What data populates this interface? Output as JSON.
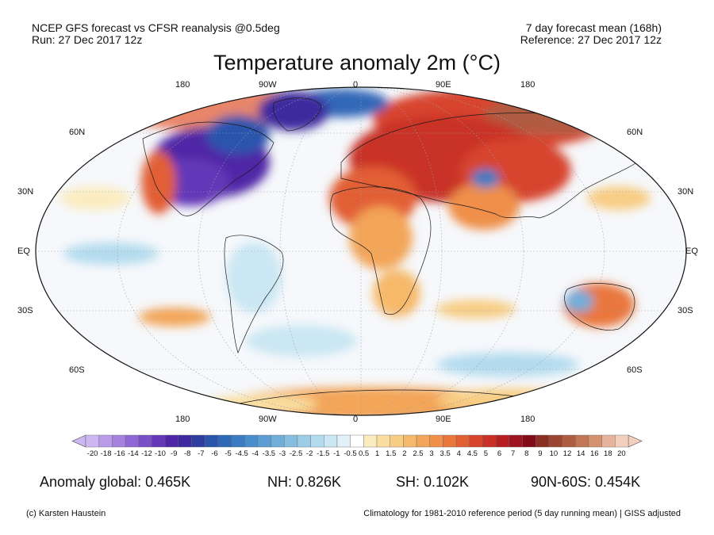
{
  "header": {
    "left_line1": "NCEP GFS forecast vs CFSR reanalysis @0.5deg",
    "left_line2": "Run: 27 Dec 2017 12z",
    "right_line1": "7 day forecast mean (168h)",
    "right_line2": "Reference: 27 Dec 2017 12z"
  },
  "title": "Temperature anomaly 2m (°C)",
  "map": {
    "lon_labels_top": [
      "180",
      "90W",
      "0",
      "90E",
      "180"
    ],
    "lon_labels_bottom": [
      "180",
      "90W",
      "0",
      "90E",
      "180"
    ],
    "lat_labels_left": [
      "60N",
      "30N",
      "EQ",
      "30S",
      "60S"
    ],
    "lat_labels_right": [
      "60N",
      "30N",
      "EQ",
      "30S",
      "60S"
    ]
  },
  "colorbar": {
    "labels": [
      "-20",
      "-18",
      "-16",
      "-14",
      "-12",
      "-10",
      "-9",
      "-8",
      "-7",
      "-6",
      "-5",
      "-4.5",
      "-4",
      "-3.5",
      "-3",
      "-2.5",
      "-2",
      "-1.5",
      "-1",
      "-0.5",
      "0.5",
      "1",
      "1.5",
      "2",
      "2.5",
      "3",
      "3.5",
      "4",
      "4.5",
      "5",
      "6",
      "7",
      "8",
      "9",
      "10",
      "12",
      "14",
      "16",
      "18",
      "20"
    ],
    "colors": [
      "#cdb7f0",
      "#b89ce8",
      "#a582e0",
      "#9068d6",
      "#7a50c8",
      "#6438b8",
      "#4f27a6",
      "#3e2a9e",
      "#2f3e9e",
      "#2b55ad",
      "#3068b8",
      "#3a7bc2",
      "#4a8dcc",
      "#5c9dd3",
      "#70aed9",
      "#86bee0",
      "#9ccde7",
      "#b3dbee",
      "#cae7f3",
      "#e1f1f8",
      "#ffffff",
      "#fbecc0",
      "#f9dea0",
      "#f8cd84",
      "#f6b96b",
      "#f3a559",
      "#ef8f4a",
      "#e9773d",
      "#e25e34",
      "#d8452d",
      "#c93027",
      "#b51f22",
      "#9e1420",
      "#840c1a",
      "#8a2f22",
      "#9c4530",
      "#b05c42",
      "#c27656",
      "#d4936f",
      "#e6b49a",
      "#f3cfbd"
    ]
  },
  "stats": {
    "global": "Anomaly global: 0.465K",
    "nh": "NH: 0.826K",
    "sh": "SH: 0.102K",
    "band": "90N-60S: 0.454K"
  },
  "footer": {
    "credit": "(c) Karsten Haustein",
    "note": "Climatology for 1981-2010 reference period (5 day running mean) | GISS adjusted"
  }
}
